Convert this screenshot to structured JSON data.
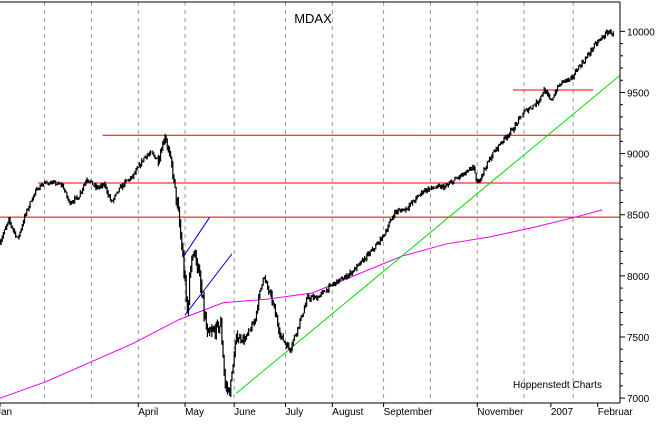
{
  "chart_data": {
    "type": "line",
    "title": "MDAX",
    "credit": "Hoppenstedt Charts",
    "xlabel": "",
    "ylabel": "",
    "ylim": [
      6960,
      10240
    ],
    "yticks": [
      7000,
      7500,
      8000,
      8500,
      9000,
      9500,
      10000
    ],
    "x_domain": [
      0,
      278
    ],
    "x_axis_labels": [
      {
        "label": "Jan",
        "x": 0
      },
      {
        "label": "April",
        "x": 62
      },
      {
        "label": "May",
        "x": 83
      },
      {
        "label": "June",
        "x": 105
      },
      {
        "label": "July",
        "x": 128
      },
      {
        "label": "August",
        "x": 149
      },
      {
        "label": "September",
        "x": 172
      },
      {
        "label": "November",
        "x": 214
      },
      {
        "label": "2007",
        "x": 247
      },
      {
        "label": "Februar",
        "x": 268
      }
    ],
    "month_gridlines_x": [
      20,
      41,
      62,
      83,
      105,
      128,
      149,
      172,
      193,
      214,
      235,
      257
    ],
    "grid": "vertical-dashed",
    "legend": "none",
    "colors": {
      "price": "#000000",
      "moving_average": "#ee00ee",
      "support_resistance": "#ee0000",
      "trend": "#00dd00",
      "channel": "#0000dd"
    },
    "series": [
      {
        "role": "price",
        "kind": "daily-range",
        "x": [
          0,
          4,
          8,
          11,
          14,
          17,
          20,
          24,
          28,
          31,
          35,
          39,
          43,
          47,
          50,
          54,
          57,
          59,
          62,
          65,
          68,
          71,
          74,
          77,
          80,
          82,
          84,
          86,
          88,
          90,
          93,
          96,
          99,
          101,
          103,
          106,
          110,
          114,
          118,
          122,
          126,
          130,
          134,
          138,
          142,
          146,
          150,
          155,
          160,
          164,
          168,
          172,
          177,
          182,
          186,
          190,
          195,
          200,
          205,
          210,
          212,
          214,
          216,
          218,
          221,
          225,
          230,
          235,
          238,
          241,
          244,
          247,
          250,
          253,
          256,
          259,
          262,
          266,
          270,
          273,
          275
        ],
        "close": [
          8280,
          8450,
          8300,
          8480,
          8620,
          8720,
          8760,
          8760,
          8740,
          8600,
          8640,
          8800,
          8720,
          8740,
          8600,
          8720,
          8780,
          8800,
          8880,
          8980,
          9000,
          8950,
          9150,
          8900,
          8500,
          8150,
          7700,
          8200,
          8150,
          7900,
          7500,
          7550,
          7600,
          7100,
          7050,
          7500,
          7480,
          7620,
          8000,
          7800,
          7500,
          7400,
          7600,
          7820,
          7820,
          7880,
          7940,
          7990,
          8070,
          8150,
          8230,
          8330,
          8520,
          8550,
          8620,
          8700,
          8720,
          8730,
          8800,
          8850,
          8900,
          8750,
          8830,
          8900,
          9000,
          9100,
          9200,
          9340,
          9380,
          9420,
          9520,
          9430,
          9540,
          9600,
          9600,
          9700,
          9760,
          9870,
          9950,
          10000,
          9980
        ],
        "range": [
          40,
          40,
          40,
          40,
          35,
          35,
          30,
          30,
          30,
          40,
          40,
          40,
          40,
          40,
          40,
          40,
          40,
          40,
          40,
          40,
          40,
          60,
          60,
          60,
          120,
          120,
          120,
          120,
          120,
          120,
          120,
          100,
          100,
          100,
          80,
          60,
          60,
          60,
          60,
          60,
          60,
          50,
          50,
          50,
          40,
          40,
          40,
          40,
          40,
          40,
          40,
          40,
          40,
          40,
          40,
          40,
          40,
          40,
          40,
          40,
          40,
          40,
          40,
          40,
          40,
          40,
          40,
          40,
          40,
          40,
          40,
          40,
          40,
          40,
          40,
          40,
          40,
          40,
          40,
          40,
          40
        ]
      },
      {
        "role": "moving_average",
        "x": [
          0,
          20,
          40,
          60,
          80,
          100,
          120,
          140,
          160,
          180,
          200,
          220,
          240,
          260,
          270
        ],
        "values": [
          7000,
          7130,
          7290,
          7450,
          7640,
          7780,
          7810,
          7860,
          8010,
          8160,
          8260,
          8320,
          8400,
          8490,
          8540
        ]
      },
      {
        "role": "support_resistance",
        "lines": [
          {
            "value": 9520,
            "x": [
              230,
              266
            ]
          },
          {
            "value": 9150,
            "x": [
              46,
              278
            ]
          },
          {
            "value": 8760,
            "x": [
              17,
              278
            ]
          },
          {
            "value": 8480,
            "x": [
              0,
              278
            ]
          }
        ]
      },
      {
        "role": "trend",
        "x": [
          106,
          278
        ],
        "values": [
          7040,
          9640
        ]
      },
      {
        "role": "channel",
        "lines": [
          {
            "x": [
              82,
              94
            ],
            "values": [
              8150,
              8480
            ]
          },
          {
            "x": [
              83,
              104
            ],
            "values": [
              7680,
              8180
            ]
          }
        ]
      }
    ]
  }
}
